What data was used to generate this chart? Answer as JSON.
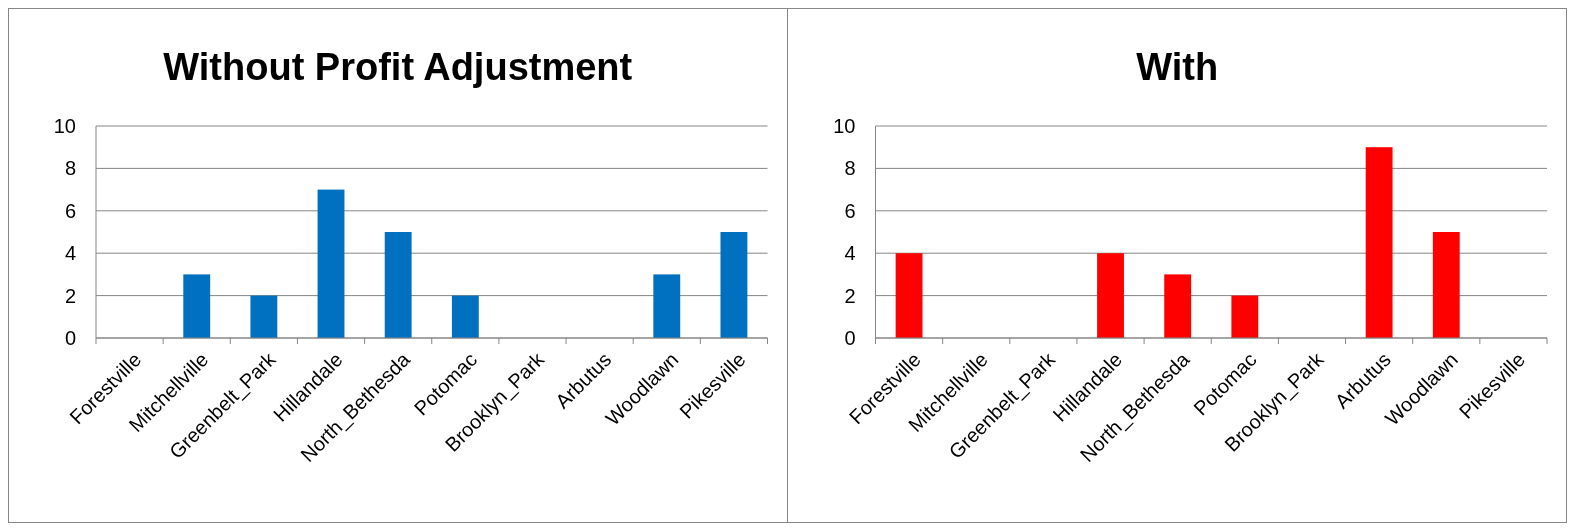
{
  "chart_data": [
    {
      "type": "bar",
      "title": "Without Profit Adjustment",
      "categories": [
        "Forestville",
        "Mitchellville",
        "Greenbelt_Park",
        "Hillandale",
        "North_Bethesda",
        "Potomac",
        "Brooklyn_Park",
        "Arbutus",
        "Woodlawn",
        "Pikesville"
      ],
      "values": [
        0,
        3,
        2,
        7,
        5,
        2,
        0,
        0,
        3,
        5
      ],
      "color": "#0070c0",
      "ylim": [
        0,
        10
      ],
      "yticks": [
        0,
        2,
        4,
        6,
        8,
        10
      ],
      "grid": "y"
    },
    {
      "type": "bar",
      "title": "With",
      "categories": [
        "Forestville",
        "Mitchellville",
        "Greenbelt_Park",
        "Hillandale",
        "North_Bethesda",
        "Potomac",
        "Brooklyn_Park",
        "Arbutus",
        "Woodlawn",
        "Pikesville"
      ],
      "values": [
        4,
        0,
        0,
        4,
        3,
        2,
        0,
        9,
        5,
        0
      ],
      "color": "#ff0000",
      "ylim": [
        0,
        10
      ],
      "yticks": [
        0,
        2,
        4,
        6,
        8,
        10
      ],
      "grid": "y"
    }
  ]
}
